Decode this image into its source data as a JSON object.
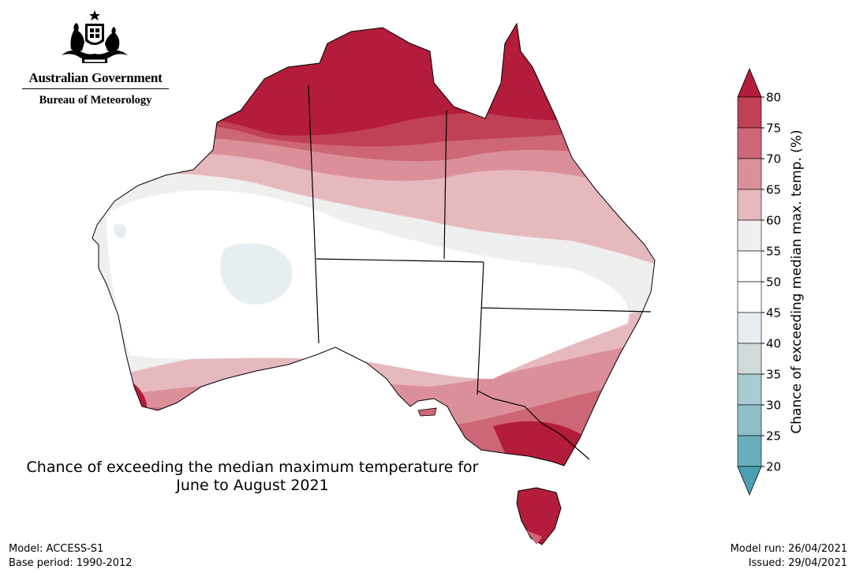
{
  "organisation": {
    "government": "Australian Government",
    "agency": "Bureau of Meteorology",
    "crest_icon": "coat-of-arms-icon"
  },
  "map": {
    "title_line1": "Chance of exceeding the median maximum temperature for",
    "title_line2": "June to August 2021",
    "region": "Australia"
  },
  "legend": {
    "label": "Chance of exceeding median max. temp. (%)",
    "ticks": [
      "80",
      "75",
      "70",
      "65",
      "60",
      "55",
      "50",
      "45",
      "40",
      "35",
      "30",
      "25",
      "20"
    ],
    "colors": [
      "#b31c3a",
      "#c04055",
      "#cd6676",
      "#db9099",
      "#e6b9be",
      "#efefee",
      "#ffffff",
      "#ffffff",
      "#e6eef1",
      "#d0dadb",
      "#a9ccd2",
      "#8fbfc8",
      "#68aeba",
      "#4c9fb0"
    ]
  },
  "footer": {
    "model": "Model: ACCESS-S1",
    "base_period": "Base period: 1990-2012",
    "model_run": "Model run: 26/04/2021",
    "issued": "Issued: 29/04/2021"
  }
}
